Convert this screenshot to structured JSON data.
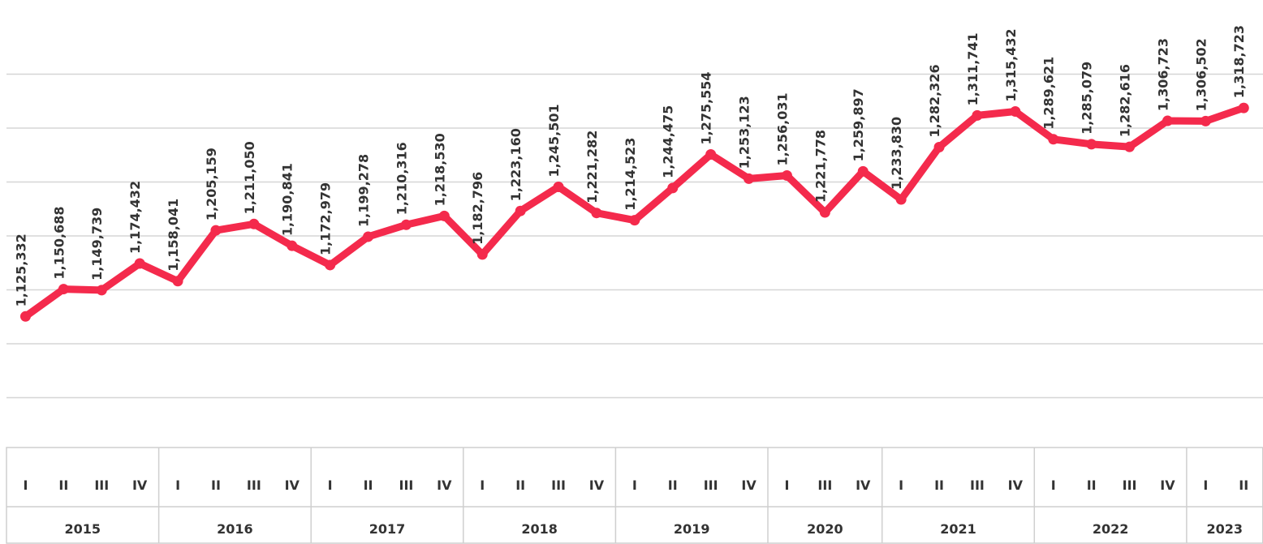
{
  "chart_data": {
    "type": "line",
    "groups": [
      {
        "label": "2015",
        "categories": [
          "I",
          "II",
          "III",
          "IV"
        ]
      },
      {
        "label": "2016",
        "categories": [
          "I",
          "II",
          "III",
          "IV"
        ]
      },
      {
        "label": "2017",
        "categories": [
          "I",
          "II",
          "III",
          "IV"
        ]
      },
      {
        "label": "2018",
        "categories": [
          "I",
          "II",
          "III",
          "IV"
        ]
      },
      {
        "label": "2019",
        "categories": [
          "I",
          "II",
          "III",
          "IV"
        ]
      },
      {
        "label": "2020",
        "categories": [
          "I",
          "III",
          "IV"
        ]
      },
      {
        "label": "2021",
        "categories": [
          "I",
          "II",
          "III",
          "IV"
        ]
      },
      {
        "label": "2022",
        "categories": [
          "I",
          "II",
          "III",
          "IV"
        ]
      },
      {
        "label": "2023",
        "categories": [
          "I",
          "II"
        ]
      }
    ],
    "values": [
      1125332,
      1150688,
      1149739,
      1174432,
      1158041,
      1205159,
      1211050,
      1190841,
      1172979,
      1199278,
      1210316,
      1218530,
      1182796,
      1223160,
      1245501,
      1221282,
      1214523,
      1244475,
      1275554,
      1253123,
      1256031,
      1221778,
      1259897,
      1233830,
      1282326,
      1311741,
      1315432,
      1289621,
      1285079,
      1282616,
      1306723,
      1306502,
      1318723
    ],
    "value_labels": [
      "1,125,332",
      "1,150,688",
      "1,149,739",
      "1,174,432",
      "1,158,041",
      "1,205,159",
      "1,211,050",
      "1,190,841",
      "1,172,979",
      "1,199,278",
      "1,210,316",
      "1,218,530",
      "1,182,796",
      "1,223,160",
      "1,245,501",
      "1,221,282",
      "1,214,523",
      "1,244,475",
      "1,275,554",
      "1,253,123",
      "1,256,031",
      "1,221,778",
      "1,259,897",
      "1,233,830",
      "1,282,326",
      "1,311,741",
      "1,315,432",
      "1,289,621",
      "1,285,079",
      "1,282,616",
      "1,306,723",
      "1,306,502",
      "1,318,723"
    ],
    "color": "#f42a4c",
    "ylim": [
      1000000,
      1400000
    ],
    "yticks": [
      1050000,
      1100000,
      1150000,
      1200000,
      1250000,
      1300000,
      1350000
    ],
    "grid": true
  }
}
